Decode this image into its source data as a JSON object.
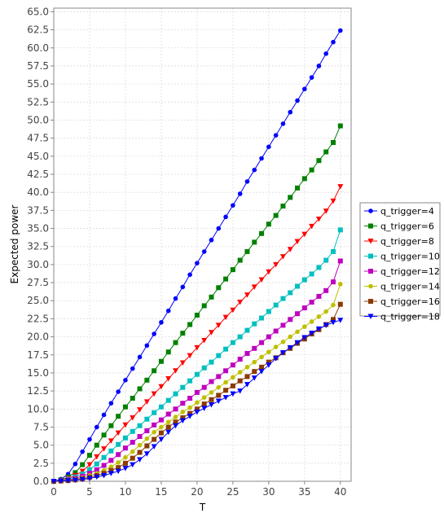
{
  "chart_data": {
    "type": "line",
    "title": "",
    "xlabel": "T",
    "ylabel": "Expected power",
    "xlim": [
      0,
      41.5
    ],
    "ylim": [
      0,
      65.5
    ],
    "xticks": [
      0,
      5,
      10,
      15,
      20,
      25,
      30,
      35,
      40
    ],
    "yticks": [
      0.0,
      2.5,
      5.0,
      7.5,
      10.0,
      12.5,
      15.0,
      17.5,
      20.0,
      22.5,
      25.0,
      27.5,
      30.0,
      32.5,
      35.0,
      37.5,
      40.0,
      42.5,
      45.0,
      47.5,
      50.0,
      52.5,
      55.0,
      57.5,
      60.0,
      62.5,
      65.0
    ],
    "ytick_labels": [
      "0.0",
      "2.5",
      "5.0",
      "7.5",
      "10.0",
      "12.5",
      "15.0",
      "17.5",
      "20.0",
      "22.5",
      "25.0",
      "27.5",
      "30.0",
      "32.5",
      "35.0",
      "37.5",
      "40.0",
      "42.5",
      "45.0",
      "47.5",
      "50.0",
      "52.5",
      "55.0",
      "57.5",
      "60.0",
      "62.5",
      "65.0"
    ],
    "grid": true,
    "legend_position": "right",
    "x": [
      0,
      1,
      2,
      3,
      4,
      5,
      6,
      7,
      8,
      9,
      10,
      11,
      12,
      13,
      14,
      15,
      16,
      17,
      18,
      19,
      20,
      21,
      22,
      23,
      24,
      25,
      26,
      27,
      28,
      29,
      30,
      31,
      32,
      33,
      34,
      35,
      36,
      37,
      38,
      39,
      40
    ],
    "series": [
      {
        "name": "q_trigger=4",
        "color": "#0000ff",
        "marker": "circle",
        "values": [
          0.0,
          0.3,
          1.0,
          2.4,
          4.1,
          5.8,
          7.5,
          9.2,
          10.8,
          12.4,
          14.0,
          15.6,
          17.2,
          18.8,
          20.4,
          22.0,
          23.6,
          25.3,
          26.9,
          28.6,
          30.2,
          31.8,
          33.4,
          35.0,
          36.6,
          38.2,
          39.8,
          41.5,
          43.1,
          44.7,
          46.3,
          47.9,
          49.5,
          51.1,
          52.7,
          54.3,
          55.9,
          57.5,
          59.2,
          60.8,
          62.4
        ]
      },
      {
        "name": "q_trigger=6",
        "color": "#008000",
        "marker": "square",
        "values": [
          0.0,
          0.2,
          0.6,
          1.2,
          2.3,
          3.6,
          5.0,
          6.4,
          7.7,
          9.0,
          10.3,
          11.5,
          12.8,
          14.0,
          15.3,
          16.6,
          17.9,
          19.2,
          20.5,
          21.7,
          23.0,
          24.3,
          25.5,
          26.8,
          28.0,
          29.3,
          30.6,
          31.8,
          33.1,
          34.3,
          35.6,
          36.8,
          38.1,
          39.3,
          40.6,
          41.9,
          43.1,
          44.4,
          45.6,
          46.9,
          49.2
        ]
      },
      {
        "name": "q_trigger=8",
        "color": "#ff0000",
        "marker": "triangle-down",
        "values": [
          0.0,
          0.1,
          0.4,
          0.8,
          1.4,
          2.3,
          3.4,
          4.5,
          5.6,
          6.7,
          7.8,
          8.8,
          9.9,
          11.0,
          12.1,
          13.1,
          14.2,
          15.3,
          16.4,
          17.4,
          18.5,
          19.5,
          20.6,
          21.6,
          22.7,
          23.7,
          24.8,
          25.8,
          26.9,
          27.9,
          29.0,
          30.0,
          31.1,
          32.1,
          33.2,
          34.2,
          35.3,
          36.3,
          37.4,
          38.8,
          40.8
        ]
      },
      {
        "name": "q_trigger=10",
        "color": "#00bfbf",
        "marker": "square",
        "values": [
          0.0,
          0.1,
          0.3,
          0.6,
          1.0,
          1.6,
          2.4,
          3.3,
          4.2,
          5.1,
          6.0,
          6.9,
          7.7,
          8.6,
          9.5,
          10.3,
          11.2,
          12.1,
          13.0,
          13.9,
          14.8,
          15.7,
          16.5,
          17.4,
          18.3,
          19.2,
          20.0,
          20.9,
          21.8,
          22.6,
          23.5,
          24.4,
          25.3,
          26.1,
          27.0,
          27.9,
          28.7,
          29.6,
          30.6,
          31.8,
          34.8
        ]
      },
      {
        "name": "q_trigger=12",
        "color": "#bf00bf",
        "marker": "square",
        "values": [
          0.0,
          0.1,
          0.2,
          0.4,
          0.7,
          1.1,
          1.6,
          2.2,
          2.9,
          3.7,
          4.6,
          5.4,
          6.2,
          7.0,
          7.8,
          8.5,
          9.3,
          10.0,
          10.8,
          11.5,
          12.3,
          13.0,
          13.8,
          14.5,
          15.3,
          16.1,
          16.9,
          17.7,
          18.4,
          19.2,
          20.0,
          20.8,
          21.6,
          22.4,
          23.2,
          24.0,
          24.8,
          25.6,
          26.4,
          27.6,
          30.5
        ]
      },
      {
        "name": "q_trigger=14",
        "color": "#bfbf00",
        "marker": "circle",
        "values": [
          0.0,
          0.05,
          0.15,
          0.3,
          0.5,
          0.8,
          1.1,
          1.5,
          2.0,
          2.6,
          3.3,
          4.1,
          5.0,
          5.9,
          6.8,
          7.5,
          8.2,
          8.9,
          9.6,
          10.2,
          10.9,
          11.6,
          12.3,
          13.0,
          13.7,
          14.4,
          15.1,
          15.8,
          16.5,
          17.2,
          17.9,
          18.6,
          19.3,
          20.0,
          20.7,
          21.4,
          22.1,
          22.8,
          23.5,
          24.4,
          27.3
        ]
      },
      {
        "name": "q_trigger=16",
        "color": "#8b3a00",
        "marker": "square",
        "values": [
          0.0,
          0.05,
          0.1,
          0.2,
          0.35,
          0.55,
          0.8,
          1.1,
          1.5,
          1.9,
          2.5,
          3.2,
          4.0,
          4.9,
          5.8,
          6.7,
          7.5,
          8.2,
          8.8,
          9.4,
          10.0,
          10.7,
          11.3,
          11.9,
          12.6,
          13.2,
          13.9,
          14.5,
          15.2,
          15.8,
          16.5,
          17.1,
          17.8,
          18.4,
          19.1,
          19.7,
          20.4,
          21.0,
          21.7,
          22.4,
          24.5
        ]
      },
      {
        "name": "q_trigger=18",
        "color": "#0000ff",
        "marker": "triangle-down",
        "values": [
          0.0,
          0.03,
          0.08,
          0.15,
          0.25,
          0.4,
          0.6,
          0.8,
          1.1,
          1.4,
          1.8,
          2.3,
          3.0,
          3.8,
          4.8,
          5.8,
          6.8,
          7.7,
          8.4,
          9.0,
          9.6,
          10.1,
          10.6,
          11.1,
          11.6,
          12.1,
          12.5,
          13.4,
          14.3,
          15.2,
          16.1,
          17.0,
          17.8,
          18.5,
          19.2,
          19.9,
          20.5,
          21.1,
          21.6,
          22.0,
          22.3
        ]
      }
    ]
  }
}
